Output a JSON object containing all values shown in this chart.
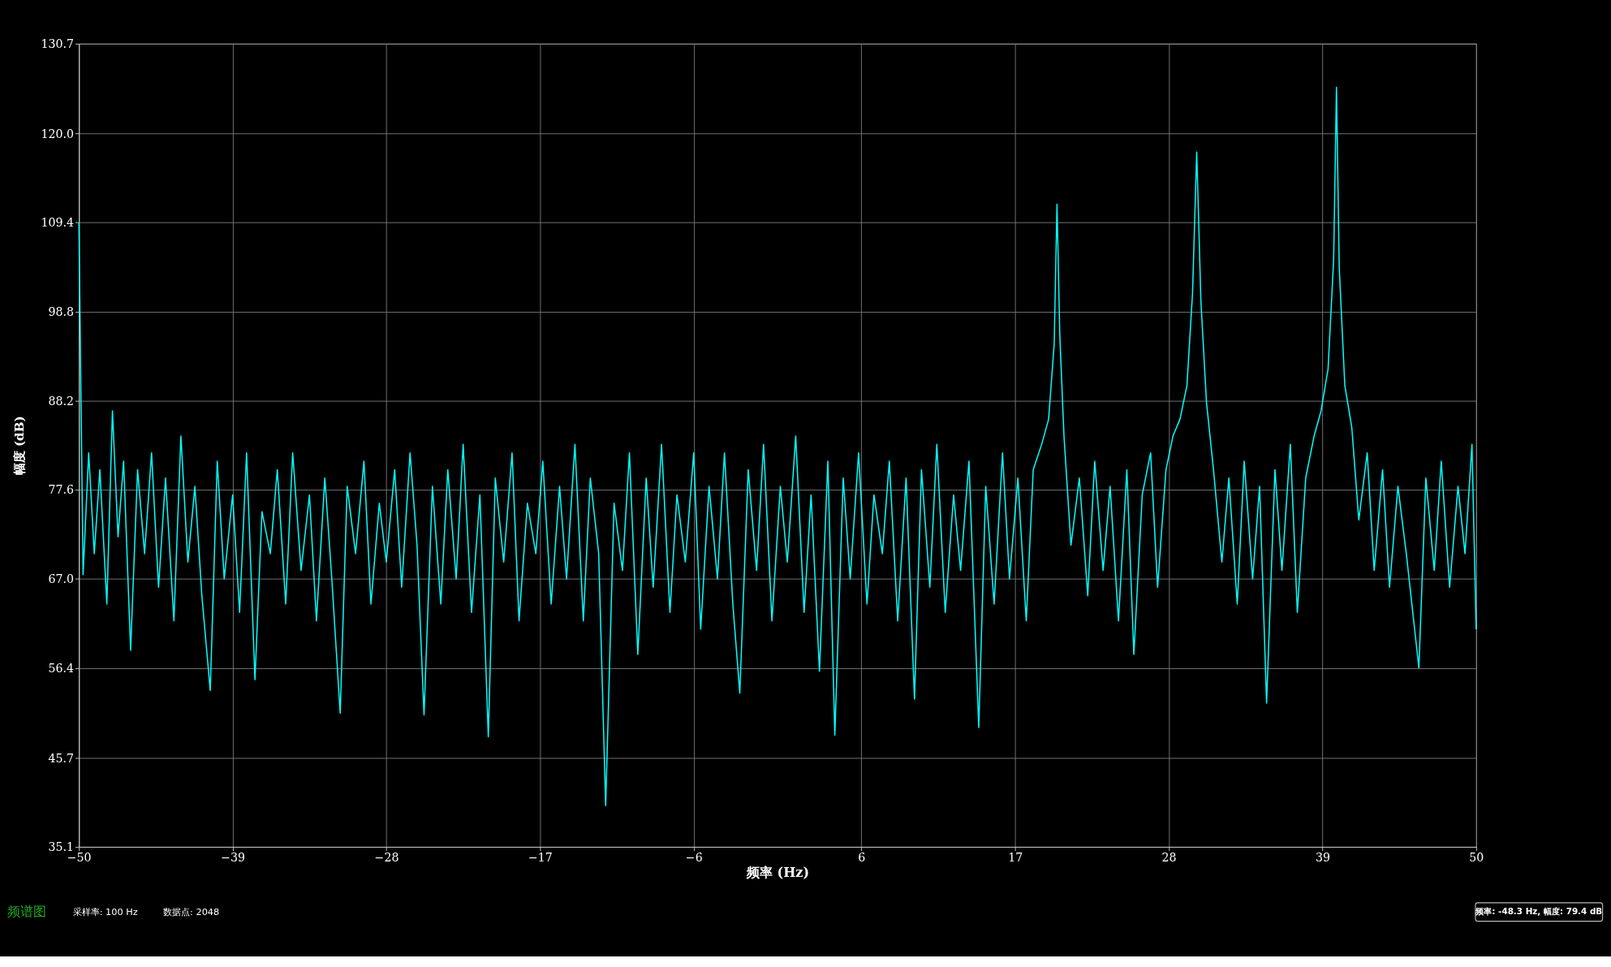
{
  "chart_data": {
    "type": "line",
    "title": "频谱图",
    "xlabel": "频率 (Hz)",
    "ylabel": "幅度 (dB)",
    "annotations": [
      "采样率: 100 Hz",
      "数据点: 2048",
      "频率: -48.3 Hz, 幅度: 79.4 dB"
    ],
    "xlim": [
      -50,
      50
    ],
    "xticks": [
      -50,
      -39,
      -28,
      -17,
      -6,
      6,
      17,
      28,
      39,
      50
    ],
    "ylim": [
      35.1,
      130.7
    ],
    "yticks": [
      35.1,
      45.7,
      56.4,
      {
        "value": 67,
        "label": "67.0"
      },
      77.6,
      88.2,
      98.8,
      109.4,
      {
        "value": 120,
        "label": "120.0"
      },
      130.7
    ],
    "grid": true,
    "marker": "none",
    "line_style": "solid",
    "series": [
      {
        "color": "#00ffff",
        "x": [
          -50,
          -49.7,
          -49.3,
          -48.9,
          -48.5,
          -48,
          -47.6,
          -47.2,
          -46.8,
          -46.3,
          -45.8,
          -45.3,
          -44.8,
          -44.3,
          -43.8,
          -43.2,
          -42.7,
          -42.2,
          -41.7,
          -41.2,
          -40.6,
          -40.1,
          -39.6,
          -39,
          -38.5,
          -38,
          -37.4,
          -36.9,
          -36.3,
          -35.8,
          -35.2,
          -34.7,
          -34.1,
          -33.5,
          -33,
          -32.4,
          -31.9,
          -31.3,
          -30.8,
          -30.2,
          -29.6,
          -29.1,
          -28.5,
          -28,
          -27.4,
          -26.9,
          -26.3,
          -25.8,
          -25.3,
          -24.7,
          -24.1,
          -23.6,
          -23,
          -22.5,
          -21.9,
          -21.3,
          -20.7,
          -20.2,
          -19.6,
          -19,
          -18.5,
          -17.9,
          -17.3,
          -16.8,
          -16.2,
          -15.6,
          -15.1,
          -14.5,
          -13.9,
          -13.4,
          -12.8,
          -12.3,
          -11.7,
          -11.1,
          -10.6,
          -10,
          -9.4,
          -8.9,
          -8.3,
          -7.7,
          -7.2,
          -6.6,
          -6,
          -5.5,
          -4.9,
          -4.3,
          -3.8,
          -3.2,
          -2.7,
          -2.1,
          -1.5,
          -1,
          -0.4,
          0.2,
          0.7,
          1.3,
          1.9,
          2.4,
          3,
          3.6,
          4.1,
          4.7,
          5.2,
          5.8,
          6.4,
          6.9,
          7.5,
          8,
          8.6,
          9.2,
          9.8,
          10.3,
          10.9,
          11.4,
          12,
          12.6,
          13.1,
          13.7,
          14.4,
          14.9,
          15.5,
          16.1,
          16.6,
          17.2,
          17.8,
          18.3,
          18.9,
          19.4,
          19.8,
          20,
          20.2,
          20.5,
          21,
          21.6,
          22.2,
          22.7,
          23.3,
          23.8,
          24.4,
          25,
          25.5,
          26.1,
          26.7,
          27.2,
          27.8,
          28.3,
          28.8,
          29.3,
          29.7,
          30,
          30.3,
          30.7,
          31.2,
          31.8,
          32.3,
          32.9,
          33.4,
          34,
          34.5,
          35,
          35.6,
          36.1,
          36.7,
          37.2,
          37.8,
          38.4,
          38.9,
          39.4,
          39.8,
          40,
          40.2,
          40.6,
          41.1,
          41.6,
          42.2,
          42.7,
          43.3,
          43.8,
          44.4,
          45,
          45.9,
          46.4,
          47,
          47.5,
          48.1,
          48.7,
          49.2,
          49.7,
          50
        ],
        "values": [
          109.4,
          67.5,
          82,
          70,
          80,
          64,
          87,
          72,
          81,
          58.5,
          80,
          70,
          82,
          66,
          79,
          62,
          84,
          69,
          78,
          65,
          53.7,
          81,
          67,
          77,
          63,
          82,
          55,
          75,
          70,
          80,
          64,
          82,
          68,
          77,
          62,
          79,
          67,
          51,
          78,
          70,
          81,
          64,
          76,
          69,
          80,
          66,
          82,
          71,
          50.8,
          78,
          64,
          80,
          67,
          83,
          63,
          77,
          48.2,
          79,
          69,
          82,
          62,
          76,
          70,
          81,
          64,
          78,
          67,
          83,
          62,
          79,
          70,
          40,
          76,
          68,
          82,
          58,
          79,
          66,
          83,
          63,
          77,
          69,
          82,
          61,
          78,
          67,
          82,
          64,
          53.4,
          80,
          68,
          83,
          62,
          78,
          69,
          84,
          63,
          77,
          56,
          81,
          48.4,
          79,
          67,
          82,
          64,
          77,
          70,
          81,
          62,
          79,
          52.7,
          80,
          66,
          83,
          63,
          77,
          68,
          81,
          49.3,
          78,
          64,
          82,
          67,
          79,
          62,
          80,
          83,
          86,
          95,
          111.6,
          96,
          84,
          71,
          79,
          65,
          81,
          68,
          78,
          62,
          80,
          58,
          77,
          82,
          66,
          80,
          84,
          86,
          90,
          101,
          117.8,
          100,
          88,
          80,
          69,
          79,
          64,
          81,
          67,
          78,
          52.2,
          80,
          68,
          83,
          63,
          79,
          84,
          87,
          92,
          105,
          125.5,
          104,
          90,
          85,
          74,
          82,
          68,
          80,
          66,
          78,
          70,
          56.4,
          79,
          68,
          81,
          66,
          78,
          70,
          83,
          61
        ]
      }
    ]
  }
}
